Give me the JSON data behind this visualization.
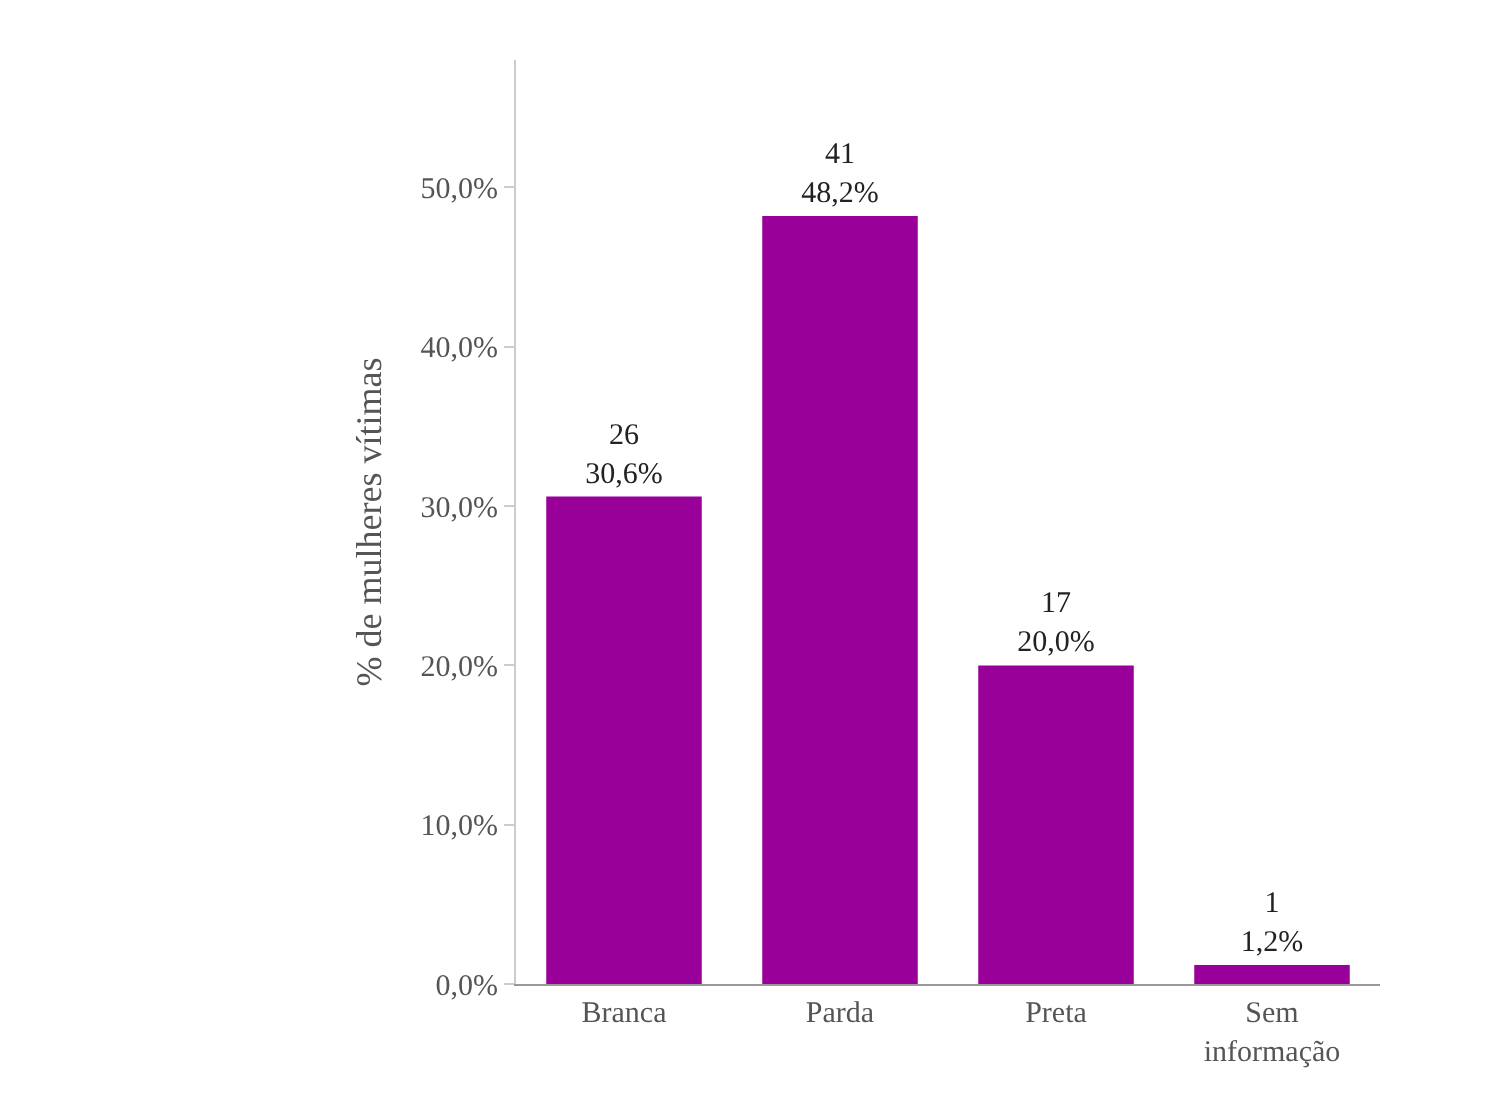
{
  "chart_data": {
    "type": "bar",
    "ylabel": "% de mulheres vítimas",
    "categories": [
      "Branca",
      "Parda",
      "Preta",
      "Sem\ninformação"
    ],
    "values": [
      30.6,
      48.2,
      20.0,
      1.2
    ],
    "value_labels": [
      "26\n30,6%",
      "41\n48,2%",
      "17\n20,0%",
      "1\n1,2%"
    ],
    "color": "#990099",
    "ylim": [
      0,
      58
    ],
    "yticks": [
      {
        "value": 0,
        "label": "0,0%"
      },
      {
        "value": 10,
        "label": "10,0%"
      },
      {
        "value": 20,
        "label": "20,0%"
      },
      {
        "value": 30,
        "label": "30,0%"
      },
      {
        "value": 40,
        "label": "40,0%"
      },
      {
        "value": 50,
        "label": "50,0%"
      }
    ],
    "legend": false
  }
}
